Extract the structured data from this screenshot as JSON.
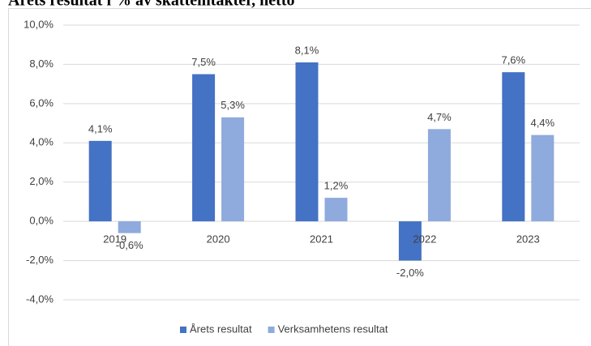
{
  "chart_data": {
    "type": "bar",
    "title": "Årets resultat i % av skatteintäkter, netto",
    "categories": [
      "2019",
      "2020",
      "2021",
      "2022",
      "2023"
    ],
    "series": [
      {
        "name": "Årets resultat",
        "color": "#4472c4",
        "values": [
          4.1,
          7.5,
          8.1,
          -2.0,
          7.6
        ],
        "value_labels": [
          "4,1%",
          "7,5%",
          "8,1%",
          "-2,0%",
          "7,6%"
        ]
      },
      {
        "name": "Verksamhetens resultat",
        "color": "#8faadc",
        "values": [
          -0.6,
          5.3,
          1.2,
          4.7,
          4.4
        ],
        "value_labels": [
          "-0,6%",
          "5,3%",
          "1,2%",
          "4,7%",
          "4,4%"
        ]
      }
    ],
    "ylim": [
      -4,
      10
    ],
    "yticks": [
      {
        "value": -4,
        "label": "-4,0%"
      },
      {
        "value": -2,
        "label": "-2,0%"
      },
      {
        "value": 0,
        "label": "0,0%"
      },
      {
        "value": 2,
        "label": "2,0%"
      },
      {
        "value": 4,
        "label": "4,0%"
      },
      {
        "value": 6,
        "label": "6,0%"
      },
      {
        "value": 8,
        "label": "8,0%"
      },
      {
        "value": 10,
        "label": "10,0%"
      }
    ],
    "grid": true,
    "legend": "bottom"
  }
}
